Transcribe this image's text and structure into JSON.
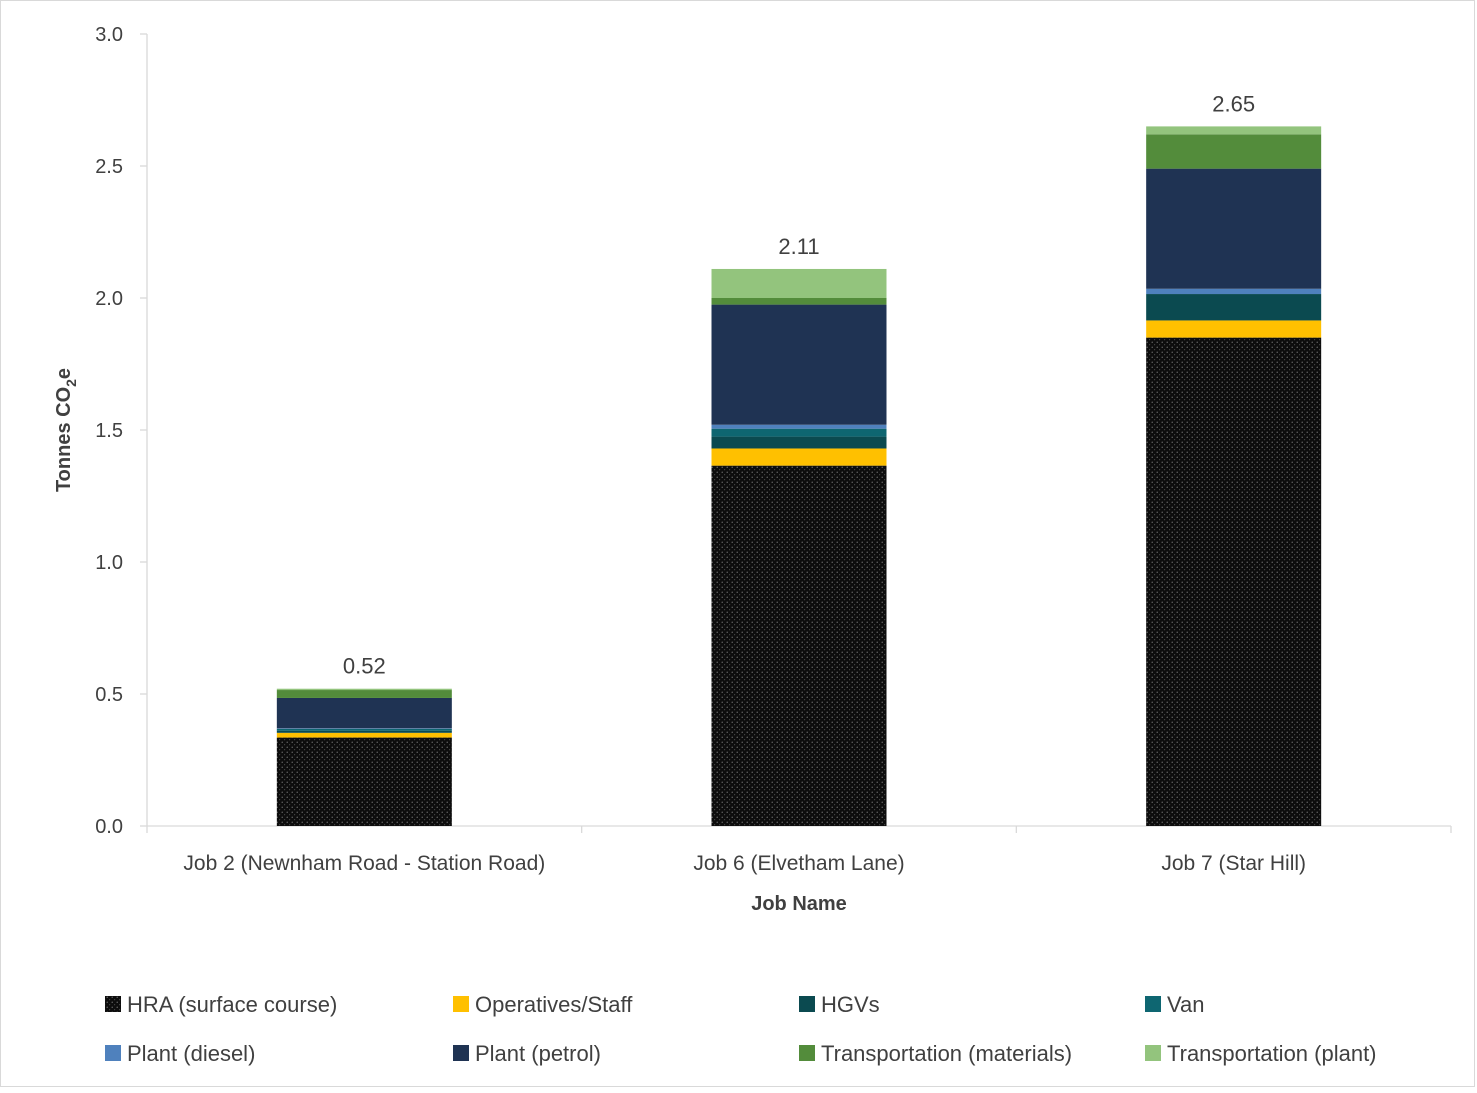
{
  "chart_data": {
    "type": "bar",
    "stacked": true,
    "xlabel": "Job Name",
    "ylabel": "Tonnes CO",
    "ylabel_subscript": "2",
    "ylabel_suffix": "e",
    "ylim": [
      0,
      3.0
    ],
    "yticks": [
      "0.0",
      "0.5",
      "1.0",
      "1.5",
      "2.0",
      "2.5",
      "3.0"
    ],
    "categories": [
      "Job 2 (Newnham Road - Station Road)",
      "Job 6 (Elvetham Lane)",
      "Job 7 (Star Hill)"
    ],
    "totals": [
      "0.52",
      "2.11",
      "2.65"
    ],
    "series": [
      {
        "name": "HRA (surface course)",
        "color": "#0d0d0d",
        "pattern": "dotted",
        "values": [
          0.335,
          1.365,
          1.85
        ]
      },
      {
        "name": "Operatives/Staff",
        "color": "#ffc000",
        "values": [
          0.018,
          0.065,
          0.065
        ]
      },
      {
        "name": "HGVs",
        "color": "#0b4a50",
        "values": [
          0.008,
          0.045,
          0.1
        ]
      },
      {
        "name": "Van",
        "color": "#0e6671",
        "values": [
          0.007,
          0.03,
          0.0
        ]
      },
      {
        "name": "Plant (diesel)",
        "color": "#4f81bd",
        "values": [
          0.002,
          0.015,
          0.02
        ]
      },
      {
        "name": "Plant (petrol)",
        "color": "#1f3353",
        "values": [
          0.115,
          0.455,
          0.455
        ]
      },
      {
        "name": "Transportation (materials)",
        "color": "#538c3b",
        "values": [
          0.03,
          0.025,
          0.13
        ]
      },
      {
        "name": "Transportation (plant)",
        "color": "#93c47d",
        "values": [
          0.005,
          0.11,
          0.03
        ]
      }
    ],
    "grid": false,
    "legend_position": "bottom"
  }
}
